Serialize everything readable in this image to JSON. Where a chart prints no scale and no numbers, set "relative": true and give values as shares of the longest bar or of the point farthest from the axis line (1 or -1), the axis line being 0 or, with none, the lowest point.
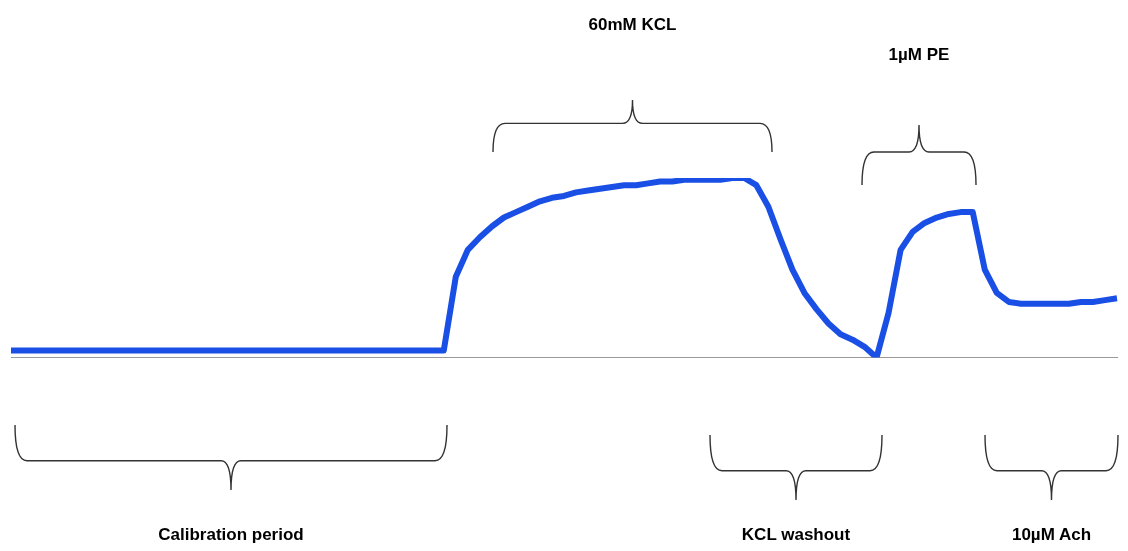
{
  "chart_data": {
    "type": "line",
    "relative": true,
    "legend": false,
    "marker": "none",
    "line_style": "solid",
    "categories": [
      null,
      null,
      null,
      null,
      null,
      null,
      null,
      null,
      null,
      null,
      null,
      null,
      null,
      null,
      null,
      null,
      null,
      null,
      null,
      null,
      null,
      null,
      null,
      null,
      null,
      null,
      null,
      null,
      null,
      null,
      null,
      null,
      null,
      null,
      null,
      null,
      null,
      null,
      null,
      null,
      null,
      null,
      null,
      null,
      null,
      null,
      null,
      null,
      null,
      null,
      null,
      null,
      null,
      null,
      null,
      null,
      null,
      null,
      null,
      null,
      null,
      null,
      null,
      null,
      null,
      null,
      null,
      null,
      null,
      null,
      null,
      null,
      null,
      null,
      null,
      null,
      null,
      null,
      null,
      null,
      null,
      null,
      null,
      null,
      null,
      null,
      null,
      null,
      null,
      null,
      null,
      null,
      null
    ],
    "series": [
      {
        "color": "#1a4fe6",
        "values": [
          0.04,
          0.04,
          0.04,
          0.04,
          0.04,
          0.04,
          0.04,
          0.04,
          0.04,
          0.04,
          0.04,
          0.04,
          0.04,
          0.04,
          0.04,
          0.04,
          0.04,
          0.04,
          0.04,
          0.04,
          0.04,
          0.04,
          0.04,
          0.04,
          0.04,
          0.04,
          0.04,
          0.04,
          0.04,
          0.04,
          0.04,
          0.04,
          0.04,
          0.04,
          0.04,
          0.04,
          0.04,
          0.45,
          0.6,
          0.67,
          0.73,
          0.78,
          0.81,
          0.84,
          0.87,
          0.89,
          0.9,
          0.92,
          0.93,
          0.94,
          0.95,
          0.96,
          0.96,
          0.97,
          0.98,
          0.98,
          0.99,
          0.99,
          0.99,
          0.99,
          1,
          1,
          0.96,
          0.84,
          0.66,
          0.49,
          0.36,
          0.27,
          0.19,
          0.13,
          0.1,
          0.06,
          0,
          0.25,
          0.6,
          0.7,
          0.75,
          0.78,
          0.8,
          0.81,
          0.81,
          0.49,
          0.36,
          0.31,
          0.3,
          0.3,
          0.3,
          0.3,
          0.3,
          0.31,
          0.31,
          0.32,
          0.33
        ]
      }
    ],
    "annotations": [
      "60mM KCL",
      "1µM PE",
      "Calibration period",
      "KCL washout",
      "10µM Ach"
    ]
  }
}
